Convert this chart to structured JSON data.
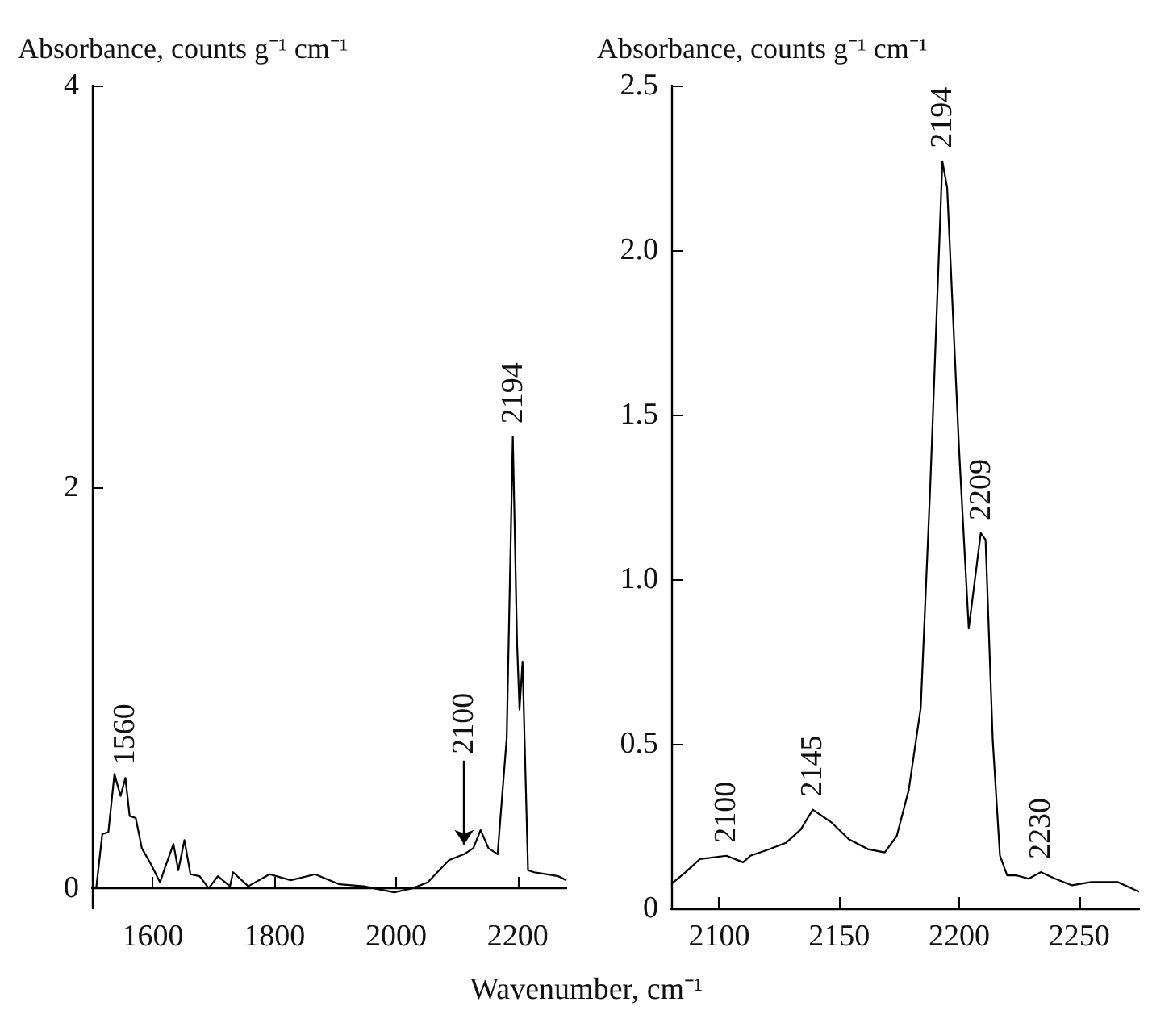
{
  "chart_data": [
    {
      "type": "line",
      "ylabel": "Absorbance, counts g⁻¹ cm⁻¹",
      "xlabel": "Wavenumber, cm⁻¹",
      "color": "#000000",
      "marker": "none",
      "grid": false,
      "x": [
        1507,
        1517,
        1527,
        1537,
        1547,
        1555,
        1562,
        1572,
        1582,
        1597,
        1612,
        1622,
        1634,
        1642,
        1652,
        1662,
        1677,
        1692,
        1707,
        1727,
        1732,
        1757,
        1792,
        1827,
        1867,
        1907,
        1947,
        1997,
        2027,
        2052,
        2087,
        2112,
        2127,
        2139,
        2152,
        2167,
        2182,
        2192,
        2199,
        2203,
        2208,
        2217,
        2227,
        2247,
        2267,
        2280
      ],
      "values": [
        0,
        0.27,
        0.28,
        0.57,
        0.46,
        0.55,
        0.36,
        0.35,
        0.2,
        0.12,
        0.03,
        0.12,
        0.22,
        0.09,
        0.24,
        0.07,
        0.06,
        0,
        0.06,
        0.01,
        0.08,
        0.01,
        0.07,
        0.04,
        0.07,
        0.02,
        0.01,
        -0.02,
        0,
        0.03,
        0.14,
        0.17,
        0.2,
        0.29,
        0.2,
        0.17,
        0.75,
        2.25,
        1.22,
        0.89,
        1.13,
        0.09,
        0.08,
        0.07,
        0.06,
        0.04
      ],
      "xlim": [
        1500,
        2280
      ],
      "xticks": [
        1600,
        1800,
        2000,
        2200
      ],
      "ylim": [
        -0.1,
        4
      ],
      "yticks": [
        0,
        2,
        4
      ],
      "annotations": [
        {
          "text": "1560",
          "x": 1555,
          "y": 0.55
        },
        {
          "text": "2100",
          "x": 2112,
          "y": 0.17
        },
        {
          "text": "2194",
          "x": 2192,
          "y": 2.25
        }
      ]
    },
    {
      "type": "line",
      "ylabel": "Absorbance, counts g⁻¹ cm⁻¹",
      "color": "#000000",
      "marker": "none",
      "grid": false,
      "x": [
        2080,
        2086,
        2092,
        2103,
        2110,
        2113,
        2121,
        2128,
        2134,
        2139,
        2147,
        2154,
        2162,
        2169,
        2174,
        2179,
        2184,
        2188,
        2193,
        2195,
        2200,
        2204,
        2209,
        2211,
        2214,
        2217,
        2220,
        2224,
        2229,
        2234,
        2240,
        2247,
        2255,
        2266,
        2275
      ],
      "values": [
        0.074,
        0.11,
        0.15,
        0.16,
        0.14,
        0.16,
        0.18,
        0.2,
        0.24,
        0.3,
        0.26,
        0.21,
        0.18,
        0.17,
        0.22,
        0.36,
        0.61,
        1.29,
        2.27,
        2.19,
        1.39,
        0.85,
        1.14,
        1.12,
        0.51,
        0.16,
        0.1,
        0.1,
        0.09,
        0.11,
        0.09,
        0.07,
        0.08,
        0.08,
        0.05
      ],
      "xlim": [
        2080,
        2275
      ],
      "xticks": [
        2100,
        2150,
        2200,
        2250
      ],
      "ylim": [
        0,
        2.5
      ],
      "yticks": [
        0,
        0.5,
        {
          "value": 1,
          "label": "1.0"
        },
        1.5,
        {
          "value": 2,
          "label": "2.0"
        },
        2.5
      ],
      "annotations": [
        {
          "text": "2100",
          "x": 2103,
          "y": 0.16
        },
        {
          "text": "2145",
          "x": 2139,
          "y": 0.3
        },
        {
          "text": "2194",
          "x": 2193,
          "y": 2.27
        },
        {
          "text": "2209",
          "x": 2209,
          "y": 1.14
        },
        {
          "text": "2230",
          "x": 2234,
          "y": 0.11
        }
      ]
    }
  ]
}
